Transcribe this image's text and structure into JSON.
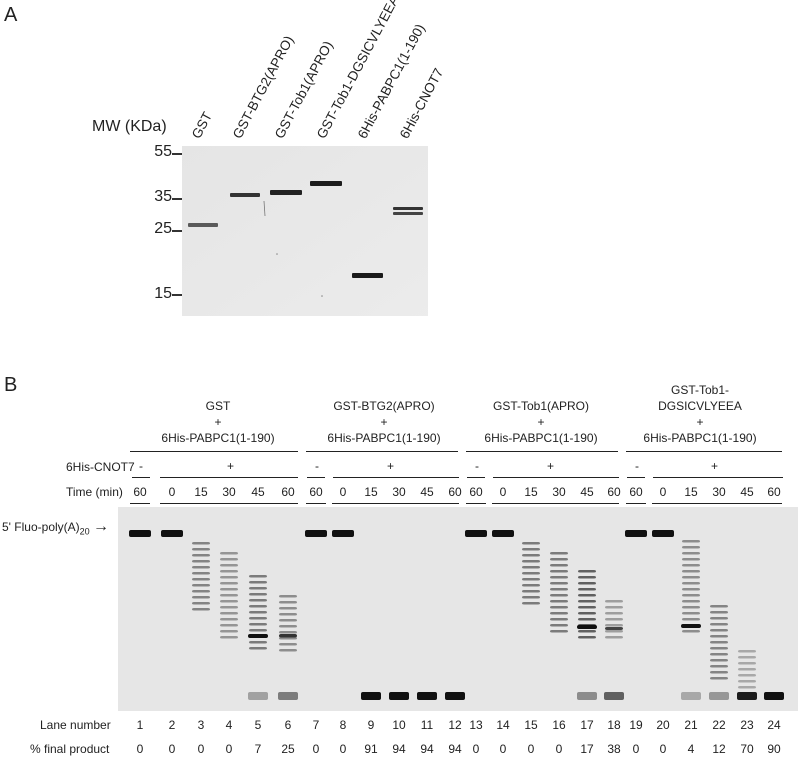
{
  "panelA": {
    "letter": "A",
    "mw_label": "MW (KDa)",
    "markers": [
      "55",
      "35",
      "25",
      "15"
    ],
    "lanes": [
      "GST",
      "GST-BTG2(APRO)",
      "GST-Tob1(APRO)",
      "GST-Tob1-DGSICVLYEEA",
      "6His-PABPC1(1-190)",
      "6His-CNOT7"
    ]
  },
  "panelB": {
    "letter": "B",
    "groups": [
      {
        "l1": "GST",
        "l2": "+",
        "l3": "6His-PABPC1(1-190)"
      },
      {
        "l1": "GST-BTG2(APRO)",
        "l2": "+",
        "l3": "6His-PABPC1(1-190)"
      },
      {
        "l1": "GST-Tob1(APRO)",
        "l2": "+",
        "l3": "6His-PABPC1(1-190)"
      },
      {
        "l0": "GST-Tob1-",
        "l1": "DGSICVLYEEA",
        "l2": "+",
        "l3": "6His-PABPC1(1-190)"
      }
    ],
    "cnot7_label": "6His-CNOT7",
    "cnot7_minus": "-",
    "cnot7_plus": "+",
    "time_label": "Time (min)",
    "times": [
      "60",
      "0",
      "15",
      "30",
      "45",
      "60"
    ],
    "substrate_label": "5' Fluo-poly(A)",
    "substrate_sub": "20",
    "arrow": "→",
    "lane_number_label": "Lane number",
    "lane_numbers": [
      "1",
      "2",
      "3",
      "4",
      "5",
      "6",
      "7",
      "8",
      "9",
      "10",
      "11",
      "12",
      "13",
      "14",
      "15",
      "16",
      "17",
      "18",
      "19",
      "20",
      "21",
      "22",
      "23",
      "24"
    ],
    "final_label": "% final product",
    "final_values": [
      "0",
      "0",
      "0",
      "0",
      "7",
      "25",
      "0",
      "0",
      "91",
      "94",
      "94",
      "94",
      "0",
      "0",
      "0",
      "0",
      "17",
      "38",
      "0",
      "0",
      "4",
      "12",
      "70",
      "90"
    ]
  }
}
